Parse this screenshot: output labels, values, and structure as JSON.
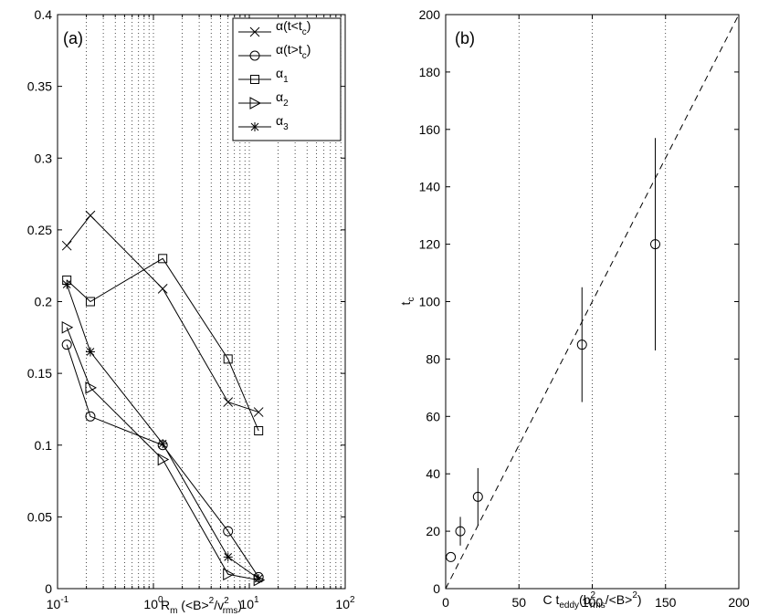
{
  "chart_data": [
    {
      "panel_label": "(a)",
      "type": "line",
      "x_scale": "log",
      "xlim": [
        0.1,
        100
      ],
      "ylim": [
        0,
        0.4
      ],
      "grid": "x-only-major-and-minor",
      "x_ticks": [
        0.1,
        1,
        10,
        100
      ],
      "x_tick_labels": [
        {
          "base": "10",
          "exp": "-1"
        },
        {
          "base": "10",
          "exp": "0"
        },
        {
          "base": "10",
          "exp": "1"
        },
        {
          "base": "10",
          "exp": "2"
        }
      ],
      "y_ticks": [
        0,
        0.05,
        0.1,
        0.15,
        0.2,
        0.25,
        0.3,
        0.35,
        0.4
      ],
      "y_tick_labels": [
        "0",
        "0.05",
        "0.1",
        "0.15",
        "0.2",
        "0.25",
        "0.3",
        "0.35",
        "0.4"
      ],
      "xlabel": {
        "main": "R",
        "sub": "m",
        "rest1": " (<B>",
        "sup1": "2",
        "rest2": "/v",
        "sup2": "2",
        "sub2": "rms",
        "rest3": ")"
      },
      "legend_location": "top-right",
      "series": [
        {
          "name": "α(t<t_c)",
          "legend": {
            "sym": "α",
            "text": "(t<t",
            "sub": "c",
            "tail": ")"
          },
          "marker": "x",
          "x": [
            0.125,
            0.22,
            1.25,
            6.0,
            12.5
          ],
          "y": [
            0.239,
            0.26,
            0.209,
            0.13,
            0.123
          ]
        },
        {
          "name": "α(t>t_c)",
          "legend": {
            "sym": "α",
            "text": "(t>t",
            "sub": "c",
            "tail": ")"
          },
          "marker": "circle",
          "x": [
            0.125,
            0.22,
            1.25,
            6.0,
            12.5
          ],
          "y": [
            0.17,
            0.12,
            0.1,
            0.04,
            0.008
          ]
        },
        {
          "name": "α_1",
          "legend": {
            "sym": "α",
            "text": "",
            "sub": "1",
            "tail": ""
          },
          "marker": "square",
          "x": [
            0.125,
            0.22,
            1.25,
            6.0,
            12.5
          ],
          "y": [
            0.215,
            0.2,
            0.23,
            0.16,
            0.11
          ]
        },
        {
          "name": "α_2",
          "legend": {
            "sym": "α",
            "text": "",
            "sub": "2",
            "tail": ""
          },
          "marker": "triangle-right",
          "x": [
            0.125,
            0.22,
            1.25,
            6.0,
            12.5
          ],
          "y": [
            0.182,
            0.14,
            0.09,
            0.01,
            0.006
          ]
        },
        {
          "name": "α_3",
          "legend": {
            "sym": "α",
            "text": "",
            "sub": "3",
            "tail": ""
          },
          "marker": "star",
          "x": [
            0.125,
            0.22,
            1.25,
            6.0,
            12.5
          ],
          "y": [
            0.212,
            0.165,
            0.101,
            0.022,
            0.007
          ]
        }
      ]
    },
    {
      "panel_label": "(b)",
      "type": "scatter",
      "x_scale": "linear",
      "xlim": [
        0,
        200
      ],
      "ylim": [
        0,
        200
      ],
      "grid": "x-only",
      "x_ticks": [
        0,
        50,
        100,
        150,
        200
      ],
      "x_tick_labels": [
        "0",
        "50",
        "100",
        "150",
        "200"
      ],
      "y_ticks": [
        0,
        20,
        40,
        60,
        80,
        100,
        120,
        140,
        160,
        180,
        200
      ],
      "y_tick_labels": [
        "0",
        "20",
        "40",
        "60",
        "80",
        "100",
        "120",
        "140",
        "160",
        "180",
        "200"
      ],
      "xlabel": {
        "main": "C t",
        "sub1": "eddy",
        "rest1": "(b",
        "sup1": "2",
        "sub2": "rms",
        "rest2": "/<B>",
        "sup2": "2",
        "rest3": ")"
      },
      "ylabel": {
        "main": "t",
        "sub": "c"
      },
      "points": [
        {
          "x": 3.5,
          "y": 11,
          "ylow": 11,
          "yhigh": 11
        },
        {
          "x": 10,
          "y": 20,
          "ylow": 15,
          "yhigh": 25
        },
        {
          "x": 22,
          "y": 32,
          "ylow": 22,
          "yhigh": 42
        },
        {
          "x": 93,
          "y": 85,
          "ylow": 65,
          "yhigh": 105
        },
        {
          "x": 143,
          "y": 120,
          "ylow": 83,
          "yhigh": 157
        }
      ],
      "reference_line": {
        "style": "dashed",
        "x": [
          0,
          200
        ],
        "y": [
          0,
          200
        ]
      }
    }
  ]
}
